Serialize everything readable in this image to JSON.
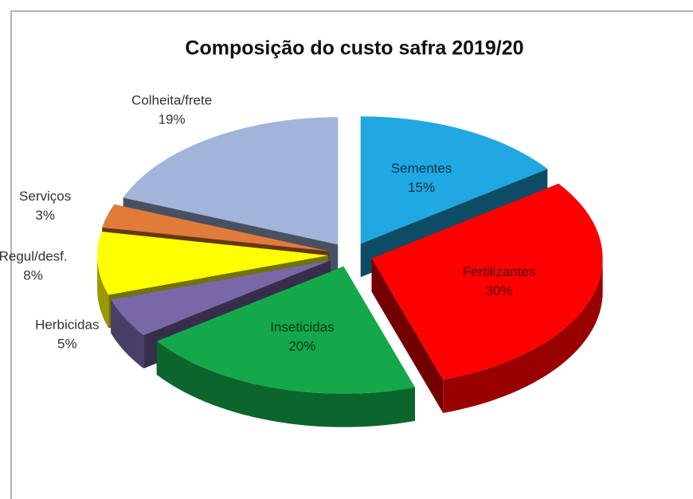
{
  "chart_data": {
    "type": "pie",
    "title": "Composição do custo safra 2019/20",
    "categories": [
      "Sementes",
      "Fertilizantes",
      "Inseticidas",
      "Herbicidas",
      "Regul/desf.",
      "Serviços",
      "Colheita/frete"
    ],
    "values": [
      15,
      30,
      20,
      5,
      8,
      3,
      19
    ],
    "value_labels": [
      "15%",
      "30%",
      "20%",
      "5%",
      "8%",
      "3%",
      "19%"
    ],
    "colors": [
      "#1fa8e2",
      "#ff0000",
      "#14a84b",
      "#7a67a8",
      "#ffff00",
      "#e07b39",
      "#a1b4da"
    ]
  }
}
